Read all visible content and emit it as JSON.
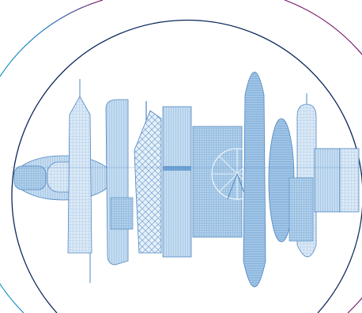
{
  "illustration": {
    "subject": "skyline-illustration",
    "colors": {
      "background": "#ffffff",
      "building_fill_light": "#d9e8f5",
      "building_fill_mid": "#a9cbe9",
      "building_fill_dark": "#6fa3d3",
      "building_stroke": "#4f86bf",
      "ring_inner": "#0b2a5c",
      "ring_outer_left": "#1fb3c8",
      "ring_outer_right": "#7a1f6e"
    }
  }
}
